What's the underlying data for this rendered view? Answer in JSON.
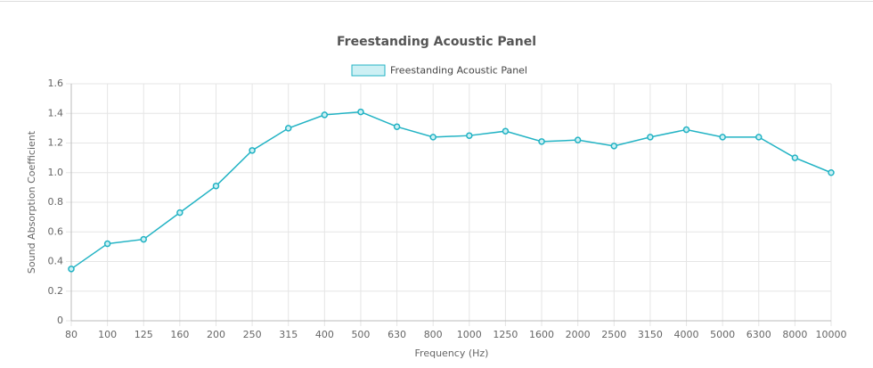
{
  "chart_data": {
    "type": "line",
    "title": "Freestanding Acoustic Panel",
    "x_label": "Frequency (Hz)",
    "y_label": "Sound Absorption Coefficient",
    "categories": [
      "80",
      "100",
      "125",
      "160",
      "200",
      "250",
      "315",
      "400",
      "500",
      "630",
      "800",
      "1000",
      "1250",
      "1600",
      "2000",
      "2500",
      "3150",
      "4000",
      "5000",
      "6300",
      "8000",
      "10000"
    ],
    "series": [
      {
        "name": "Freestanding Acoustic Panel",
        "color": "#22b3c4",
        "fill": "#cdf0f4",
        "values": [
          0.35,
          0.52,
          0.55,
          0.73,
          0.91,
          1.15,
          1.3,
          1.39,
          1.41,
          1.31,
          1.24,
          1.25,
          1.28,
          1.21,
          1.22,
          1.18,
          1.24,
          1.29,
          1.24,
          1.24,
          1.1,
          1.0
        ]
      }
    ],
    "ylim": [
      0,
      1.6
    ],
    "yticks": [
      0,
      0.2,
      0.4,
      0.6,
      0.8,
      {
        "value": 1,
        "label": "1.0"
      },
      1.2,
      1.4,
      1.6
    ],
    "grid": true
  }
}
